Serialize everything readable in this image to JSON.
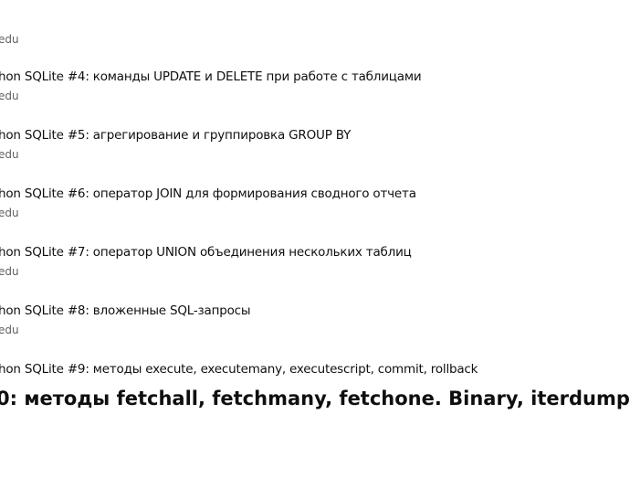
{
  "list": {
    "top_channel": "edu",
    "items": [
      {
        "title": "hon SQLite #4: команды UPDATE и DELETE при работе с таблицами",
        "channel": "edu"
      },
      {
        "title": "hon SQLite #5: агрегирование и группировка GROUP BY",
        "channel": "edu"
      },
      {
        "title": "hon SQLite #6: оператор JOIN для формирования сводного отчета",
        "channel": "edu"
      },
      {
        "title": "hon SQLite #7: оператор UNION объединения нескольких таблиц",
        "channel": "edu"
      },
      {
        "title": "hon SQLite #8: вложенные SQL-запросы",
        "channel": "edu"
      },
      {
        "title": "hon SQLite #9: методы execute, executemany, executescript, commit, rollback",
        "channel": ""
      }
    ]
  },
  "overlay_title": "0: методы fetchall, fetchmany, fetchone. Binary, iterdump"
}
